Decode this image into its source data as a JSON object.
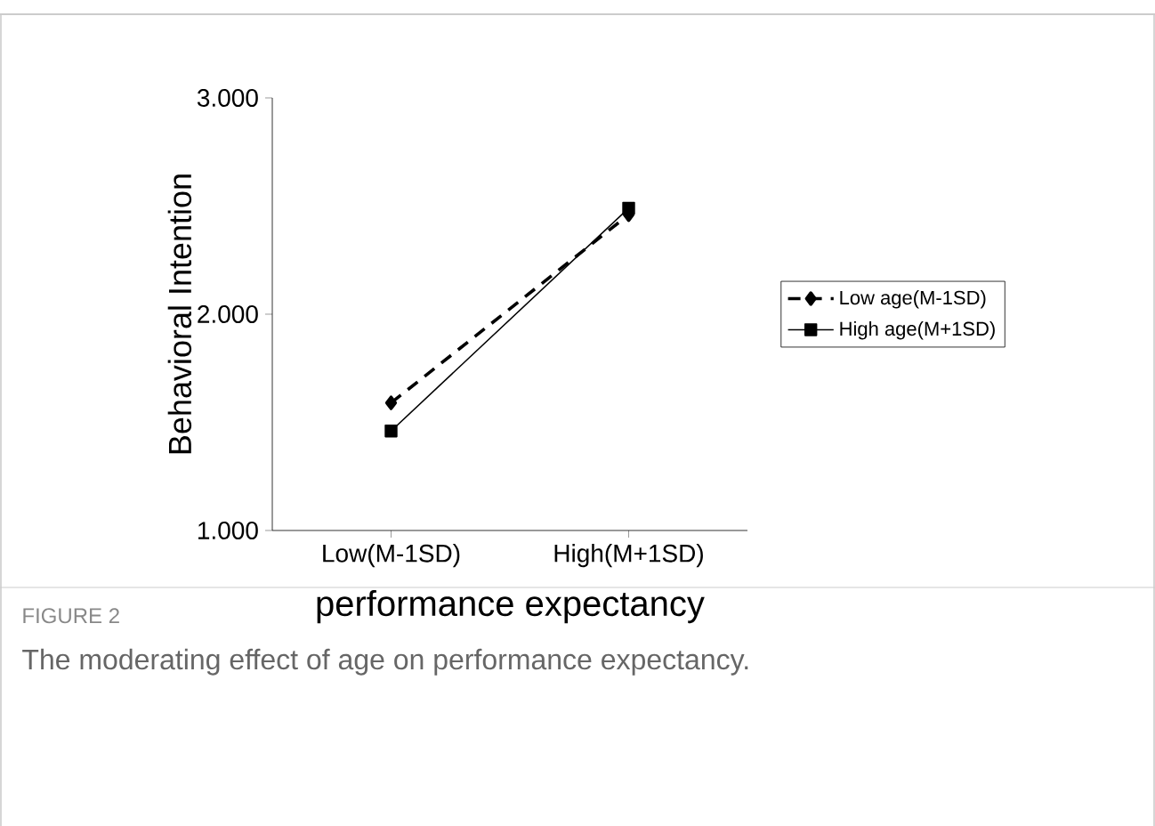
{
  "chart_data": {
    "type": "line",
    "xlabel": "performance expectancy",
    "ylabel": "Behavioral Intention",
    "categories": [
      "Low(M-1SD)",
      "High(M+1SD)"
    ],
    "series": [
      {
        "name": "Low age(M-1SD)",
        "color": "#000000",
        "values": [
          1.59,
          2.46
        ],
        "marker": "diamond",
        "line_style": "dashed"
      },
      {
        "name": "High age(M+1SD)",
        "color": "#000000",
        "values": [
          1.46,
          2.49
        ],
        "marker": "square",
        "line_style": "solid"
      }
    ],
    "ylim": [
      1,
      3
    ],
    "yticks": [
      {
        "value": 1,
        "label": "1.000"
      },
      {
        "value": 2,
        "label": "2.000"
      },
      {
        "value": 3,
        "label": "3.000"
      }
    ],
    "grid": false,
    "legend": "right",
    "annotations": [
      "FIGURE 2",
      "The moderating effect of age on performance expectancy."
    ]
  }
}
